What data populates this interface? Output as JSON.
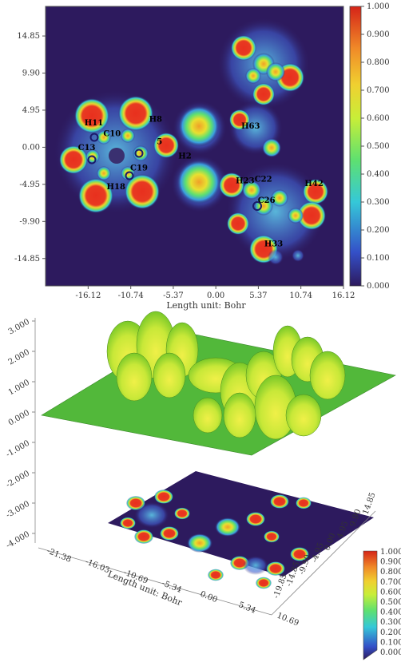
{
  "chart_data": [
    {
      "type": "heatmap",
      "title": "",
      "xlabel": "Length unit: Bohr",
      "ylabel": "",
      "x_ticks": [
        "-16.12",
        "-10.74",
        "-5.37",
        "0.00",
        "5.37",
        "10.74",
        "16.12"
      ],
      "y_ticks": [
        "14.85",
        "9.90",
        "4.95",
        "0.00",
        "-4.95",
        "-9.90",
        "-14.85"
      ],
      "xlim": [
        -21.5,
        16.12
      ],
      "ylim": [
        -18.5,
        18.8
      ],
      "colorbar": {
        "ticks": [
          "1.000",
          "0.900",
          "0.800",
          "0.700",
          "0.600",
          "0.500",
          "0.400",
          "0.300",
          "0.200",
          "0.100",
          "0.000"
        ],
        "range": [
          0,
          1
        ],
        "colors": [
          "#2d1a5e",
          "#3450c8",
          "#35c8d8",
          "#5ee070",
          "#c8ee38",
          "#f0d030",
          "#f08a28",
          "#e83a22",
          "#d52418"
        ]
      },
      "atom_labels": [
        {
          "text": "H11",
          "x": -15.4,
          "y": 2.9
        },
        {
          "text": "H8",
          "x": -7.6,
          "y": 3.4
        },
        {
          "text": "C10",
          "x": -13.1,
          "y": 1.5
        },
        {
          "text": "C13",
          "x": -16.3,
          "y": -0.4
        },
        {
          "text": "5",
          "x": -7.1,
          "y": 0.4
        },
        {
          "text": "C19",
          "x": -9.7,
          "y": -3.1
        },
        {
          "text": "H2",
          "x": -3.9,
          "y": -1.5
        },
        {
          "text": "H18",
          "x": -12.6,
          "y": -5.6
        },
        {
          "text": "H63",
          "x": 4.4,
          "y": 2.5
        },
        {
          "text": "H23",
          "x": 3.7,
          "y": -4.8
        },
        {
          "text": "C22",
          "x": 6.0,
          "y": -4.6
        },
        {
          "text": "C26",
          "x": 6.4,
          "y": -7.4
        },
        {
          "text": "H42",
          "x": 12.4,
          "y": -5.2
        },
        {
          "text": "H33",
          "x": 7.3,
          "y": -13.2
        }
      ]
    },
    {
      "type": "area",
      "title": "",
      "z_ticks": [
        "3.000",
        "2.000",
        "1.000",
        "0.000",
        "-1.000",
        "-2.000",
        "-3.000",
        "-4.000"
      ],
      "x_ticks": [
        "-21.38",
        "-16.03",
        "-10.69",
        "-5.34",
        "0.00",
        "5.34",
        "10.69"
      ],
      "xlabel": "Length unit: Bohr",
      "y_ticks": [
        "-19.85",
        "-14.85",
        "-9.90",
        "-4.95",
        "0.00",
        "4.95",
        "9.90",
        "14.85"
      ],
      "colorbar_ticks": [
        "1.000",
        "0.900",
        "0.800",
        "0.700",
        "0.600",
        "0.500",
        "0.400",
        "0.300",
        "0.200",
        "0.100",
        "0.000"
      ]
    }
  ]
}
